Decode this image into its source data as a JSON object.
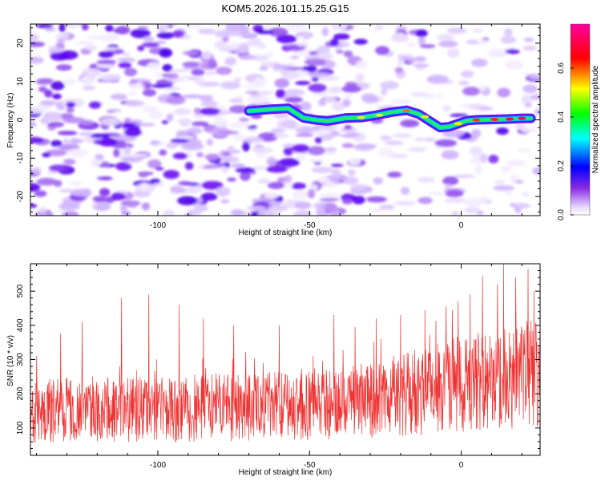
{
  "title": "KOM5.2026.101.15.25.G15",
  "chart_data": [
    {
      "type": "heatmap",
      "name": "spectrogram",
      "xlabel": "Height of straight line (km)",
      "ylabel": "Frequency (Hz)",
      "xlim": [
        -142,
        26
      ],
      "ylim": [
        -25,
        25
      ],
      "xticks": [
        -100,
        -50,
        0
      ],
      "yticks": [
        -20,
        -10,
        0,
        10,
        20
      ],
      "signal_ridge": {
        "x": [
          -70,
          -62,
          -57,
          -52,
          -48,
          -44,
          -38,
          -33,
          -28,
          -23,
          -18,
          -14,
          -10,
          -7,
          -4,
          -1,
          2,
          5,
          10,
          15,
          20,
          23
        ],
        "y": [
          2.3,
          2.8,
          3.0,
          0.5,
          0.0,
          -0.3,
          0.5,
          0.6,
          1.2,
          2.0,
          2.5,
          1.5,
          -0.5,
          -2.0,
          -1.8,
          -1.0,
          -0.2,
          0.0,
          0.1,
          0.2,
          0.4,
          0.4
        ]
      },
      "colorbar": {
        "label": "Normalized spectral amplitude",
        "range": [
          0.0,
          0.78
        ],
        "ticks": [
          "0.0",
          "0.2",
          "0.4",
          "0.6"
        ],
        "tick_values": [
          0.0,
          0.2,
          0.4,
          0.6
        ],
        "colormap": "hsv-rainbow (white → violet → blue → cyan → green → yellow → red → magenta)"
      }
    },
    {
      "type": "line",
      "name": "snr",
      "xlabel": "Height of straight line (km)",
      "ylabel": "SNR (10 * v/v)",
      "xlim": [
        -142,
        26
      ],
      "ylim": [
        20,
        580
      ],
      "xticks": [
        -100,
        -50,
        0
      ],
      "yticks": [
        100,
        200,
        300,
        400,
        500
      ],
      "color": "#f03232",
      "trend": {
        "x": [
          -142,
          -120,
          -100,
          -80,
          -60,
          -40,
          -20,
          0,
          26
        ],
        "y": [
          150,
          155,
          155,
          160,
          165,
          175,
          195,
          230,
          260
        ]
      },
      "spikes": {
        "x": [
          -140,
          -132,
          -125,
          -112,
          -103,
          -93,
          -85,
          -75,
          -60,
          -42,
          -35,
          -28,
          -20,
          -12,
          -5,
          -1,
          3,
          7,
          12,
          14,
          18,
          22,
          24
        ],
        "y": [
          310,
          375,
          410,
          480,
          490,
          460,
          420,
          400,
          400,
          430,
          395,
          420,
          430,
          445,
          455,
          470,
          490,
          545,
          520,
          580,
          540,
          565,
          500
        ]
      }
    }
  ]
}
